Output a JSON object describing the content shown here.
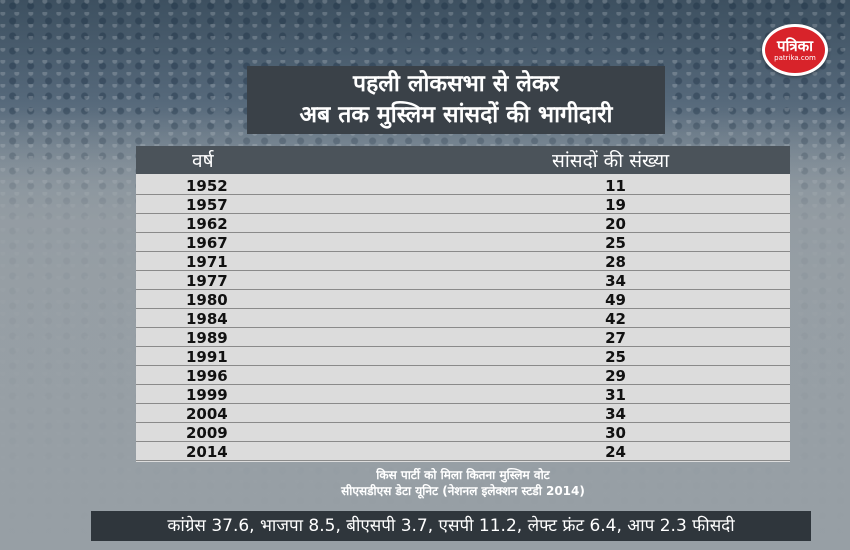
{
  "brand": {
    "name": "पत्रिका",
    "domain": "patrika.com",
    "color": "#d8232a"
  },
  "title": {
    "line1": "पहली लोकसभा से लेकर",
    "line2": "अब तक मुस्लिम सांसदों की भागीदारी"
  },
  "chart_data": {
    "type": "table",
    "columns": [
      "वर्ष",
      "सांसदों की संख्या"
    ],
    "categories": [
      "1952",
      "1957",
      "1962",
      "1967",
      "1971",
      "1977",
      "1980",
      "1984",
      "1989",
      "1991",
      "1996",
      "1999",
      "2004",
      "2009",
      "2014"
    ],
    "values": [
      11,
      19,
      20,
      25,
      28,
      34,
      49,
      42,
      27,
      25,
      29,
      31,
      34,
      30,
      24
    ]
  },
  "note": {
    "line1": "किस पार्टी को मिला कितना मुस्लिम वोट",
    "line2": "सीएसडीएस डेटा यूनिट (नेशनल इलेक्शन स्टडी 2014)"
  },
  "footer": "कांग्रेस 37.6, भाजपा 8.5, बीएसपी 3.7, एसपी 11.2, लेफ्ट फ्रंट 6.4, आप 2.3 फीसदी"
}
